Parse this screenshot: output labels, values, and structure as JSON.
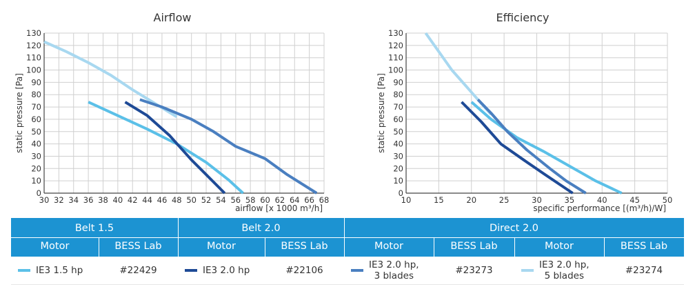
{
  "chart_data": [
    {
      "type": "line",
      "title": "Airflow",
      "xlabel": "airflow [x 1000 m³/h]",
      "ylabel": "static pressure [Pa]",
      "xlim": [
        30,
        68
      ],
      "ylim": [
        0,
        130
      ],
      "xticks": [
        30,
        32,
        34,
        36,
        38,
        40,
        42,
        44,
        46,
        48,
        50,
        52,
        54,
        56,
        58,
        60,
        62,
        64,
        66,
        68
      ],
      "yticks": [
        0,
        10,
        20,
        30,
        40,
        50,
        60,
        70,
        80,
        90,
        100,
        110,
        120,
        130
      ],
      "grid": true,
      "series": [
        {
          "name": "IE3 5 blades",
          "color": "#a8d8f0",
          "points": [
            [
              30,
              123
            ],
            [
              33,
              115
            ],
            [
              36,
              106
            ],
            [
              39,
              96
            ],
            [
              42,
              84
            ],
            [
              45,
              73
            ],
            [
              48,
              62
            ]
          ]
        },
        {
          "name": "IE3 1.5 hp",
          "color": "#5bc0e8",
          "points": [
            [
              36,
              74
            ],
            [
              40,
              63
            ],
            [
              44,
              52
            ],
            [
              48,
              40
            ],
            [
              52,
              25
            ],
            [
              55,
              11
            ],
            [
              57,
              0
            ]
          ]
        },
        {
          "name": "IE3 2.0 hp",
          "color": "#1e4a96",
          "points": [
            [
              41,
              74
            ],
            [
              44,
              63
            ],
            [
              47,
              47
            ],
            [
              50,
              27
            ],
            [
              52,
              15
            ],
            [
              54.5,
              0
            ]
          ]
        },
        {
          "name": "IE3 3 blades",
          "color": "#4a7fc0",
          "points": [
            [
              43,
              76
            ],
            [
              46,
              70
            ],
            [
              50,
              60
            ],
            [
              53,
              50
            ],
            [
              56,
              38
            ],
            [
              60,
              28
            ],
            [
              63,
              15
            ],
            [
              67,
              0
            ]
          ]
        }
      ]
    },
    {
      "type": "line",
      "title": "Efficiency",
      "xlabel": "specific performance [(m³/h)/W]",
      "ylabel": "static pressure [Pa]",
      "xlim": [
        10,
        50
      ],
      "ylim": [
        0,
        130
      ],
      "xticks": [
        10,
        15,
        20,
        25,
        30,
        35,
        40,
        45,
        50
      ],
      "yticks": [
        0,
        10,
        20,
        30,
        40,
        50,
        60,
        70,
        80,
        90,
        100,
        110,
        120,
        130
      ],
      "grid": true,
      "series": [
        {
          "name": "IE3 5 blades",
          "color": "#a8d8f0",
          "points": [
            [
              13,
              130
            ],
            [
              15,
              115
            ],
            [
              17,
              100
            ],
            [
              19,
              88
            ],
            [
              21,
              76
            ],
            [
              23,
              64
            ]
          ]
        },
        {
          "name": "IE3 1.5 hp",
          "color": "#5bc0e8",
          "points": [
            [
              20,
              74
            ],
            [
              23,
              60
            ],
            [
              27,
              45
            ],
            [
              31,
              34
            ],
            [
              35,
              22
            ],
            [
              39,
              10
            ],
            [
              43,
              0
            ]
          ]
        },
        {
          "name": "IE3 2.0 hp",
          "color": "#1e4a96",
          "points": [
            [
              18.5,
              74
            ],
            [
              21.5,
              58
            ],
            [
              24.5,
              40
            ],
            [
              28,
              27
            ],
            [
              31,
              16
            ],
            [
              35.5,
              0
            ]
          ]
        },
        {
          "name": "IE3 3 blades",
          "color": "#4a7fc0",
          "points": [
            [
              21,
              76
            ],
            [
              23,
              65
            ],
            [
              25.5,
              50
            ],
            [
              28.5,
              35
            ],
            [
              32,
              20
            ],
            [
              34.5,
              10
            ],
            [
              37.5,
              0
            ]
          ]
        }
      ]
    }
  ],
  "table": {
    "groups": [
      "Belt 1.5",
      "Belt 2.0",
      "Direct 2.0"
    ],
    "subheaders": [
      "Motor",
      "BESS Lab",
      "Motor",
      "BESS Lab",
      "Motor",
      "BESS Lab",
      "Motor",
      "BESS Lab"
    ],
    "rows": [
      {
        "motor_line1": "IE3 1.5 hp",
        "motor_line2": "",
        "bess": "#22429",
        "color": "#5bc0e8"
      },
      {
        "motor_line1": "IE3 2.0 hp",
        "motor_line2": "",
        "bess": "#22106",
        "color": "#1e4a96"
      },
      {
        "motor_line1": "IE3 2.0 hp,",
        "motor_line2": "3 blades",
        "bess": "#23273",
        "color": "#4a7fc0"
      },
      {
        "motor_line1": "IE3 2.0 hp,",
        "motor_line2": "5 blades",
        "bess": "#23274",
        "color": "#a8d8f0"
      }
    ]
  }
}
